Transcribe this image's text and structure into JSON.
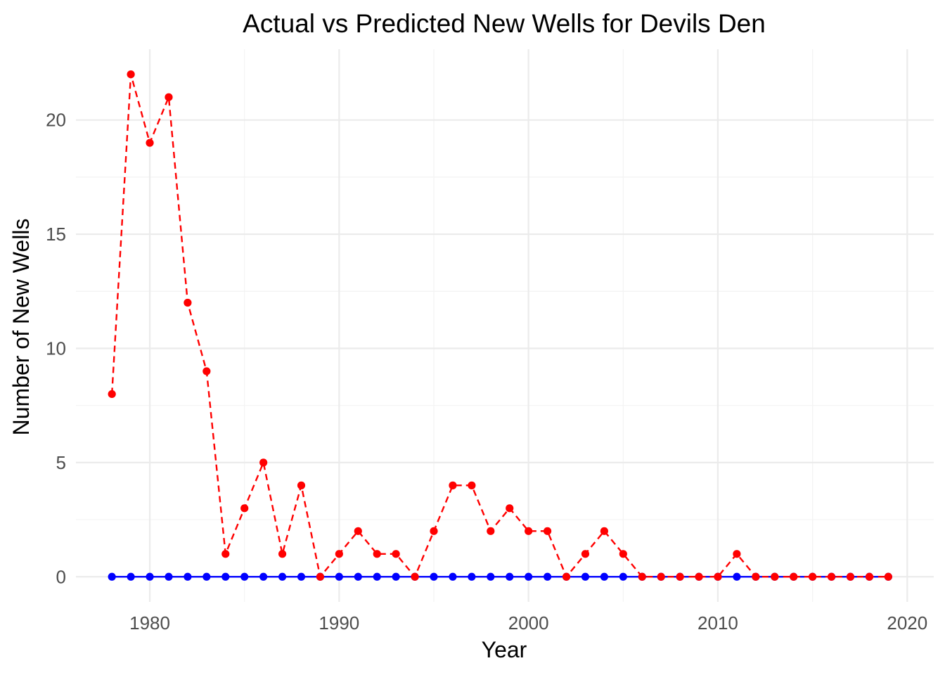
{
  "chart_data": {
    "type": "line",
    "title": "Actual vs Predicted New Wells for Devils Den",
    "xlabel": "Year",
    "ylabel": "Number of New Wells",
    "xlim": [
      1976.1,
      2021.4
    ],
    "ylim": [
      -1.1,
      23.1
    ],
    "x_ticks": [
      1980,
      1990,
      2000,
      2010,
      2020
    ],
    "y_ticks": [
      0,
      5,
      10,
      15,
      20
    ],
    "grid": true,
    "legend": "none",
    "x": [
      1978,
      1979,
      1980,
      1981,
      1982,
      1983,
      1984,
      1985,
      1986,
      1987,
      1988,
      1989,
      1990,
      1991,
      1992,
      1993,
      1994,
      1995,
      1996,
      1997,
      1998,
      1999,
      2000,
      2001,
      2002,
      2003,
      2004,
      2005,
      2006,
      2007,
      2008,
      2009,
      2010,
      2011,
      2012,
      2013,
      2014,
      2015,
      2016,
      2017,
      2018,
      2019
    ],
    "series": [
      {
        "color": "#0000ff",
        "line_style": "solid",
        "values": [
          0,
          0,
          0,
          0,
          0,
          0,
          0,
          0,
          0,
          0,
          0,
          0,
          0,
          0,
          0,
          0,
          0,
          0,
          0,
          0,
          0,
          0,
          0,
          0,
          0,
          0,
          0,
          0,
          0,
          0,
          0,
          0,
          0,
          0,
          0,
          0,
          0,
          0,
          0,
          0,
          0,
          0
        ]
      },
      {
        "color": "#ff0000",
        "line_style": "dashed",
        "values": [
          8,
          22,
          19,
          21,
          12,
          9,
          1,
          3,
          5,
          1,
          4,
          0,
          1,
          2,
          1,
          1,
          0,
          2,
          4,
          4,
          2,
          3,
          2,
          2,
          0,
          1,
          2,
          1,
          0,
          0,
          0,
          0,
          0,
          1,
          0,
          0,
          0,
          0,
          0,
          0,
          0,
          0
        ]
      }
    ]
  }
}
